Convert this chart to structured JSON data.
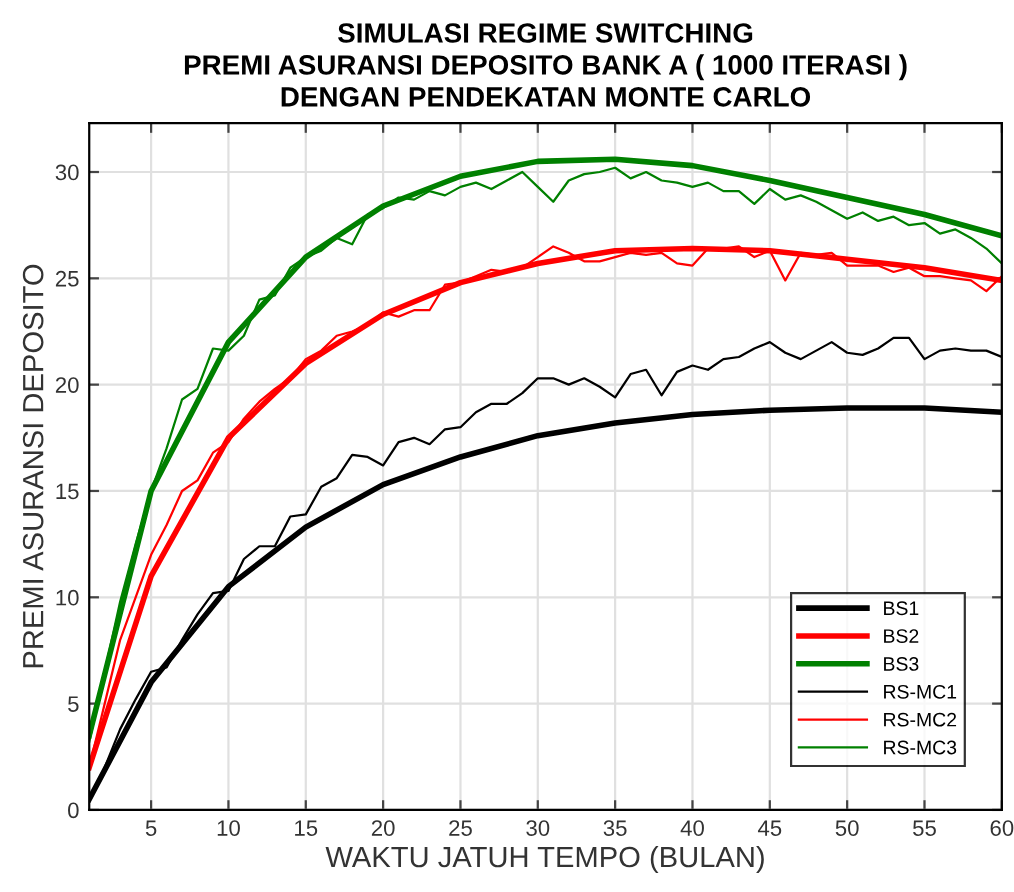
{
  "chart_data": {
    "type": "line",
    "title": "SIMULASI REGIME SWITCHING\nPREMI ASURANSI DEPOSITO BANK A ( 1000 ITERASI )\nDENGAN PENDEKATAN MONTE CARLO",
    "xlabel": "WAKTU JATUH TEMPO (BULAN)",
    "ylabel": "PREMI ASURANSI DEPOSITO",
    "xlim": [
      1,
      60
    ],
    "xticks": [
      5,
      10,
      15,
      20,
      25,
      30,
      35,
      40,
      45,
      50,
      55,
      60
    ],
    "ylim": [
      0,
      32.3
    ],
    "yticks": [
      0,
      5,
      10,
      15,
      20,
      25,
      30
    ],
    "grid": true,
    "legend": "bottom right",
    "series": [
      {
        "name": "BS1",
        "color": "#000000",
        "x": [
          1,
          5,
          10,
          15,
          20,
          25,
          30,
          35,
          40,
          45,
          50,
          55,
          60
        ],
        "values": [
          0.5,
          6,
          10.5,
          13.3,
          15.3,
          16.6,
          17.6,
          18.2,
          18.6,
          18.8,
          18.9,
          18.9,
          18.7
        ]
      },
      {
        "name": "BS2",
        "color": "#ff0000",
        "x": [
          1,
          5,
          10,
          15,
          20,
          25,
          30,
          35,
          40,
          45,
          50,
          55,
          60
        ],
        "values": [
          2,
          11,
          17.5,
          21,
          23.3,
          24.8,
          25.7,
          26.3,
          26.4,
          26.3,
          25.9,
          25.5,
          24.9
        ]
      },
      {
        "name": "BS3",
        "color": "#008000",
        "x": [
          1,
          5,
          10,
          15,
          20,
          25,
          30,
          35,
          40,
          45,
          50,
          55,
          60
        ],
        "values": [
          3.5,
          15,
          22,
          26,
          28.4,
          29.8,
          30.5,
          30.6,
          30.3,
          29.6,
          28.8,
          28,
          27
        ]
      },
      {
        "name": "RS-MC1",
        "color": "#000000",
        "x": [
          1,
          2,
          3,
          4,
          5,
          6,
          7,
          8,
          9,
          10,
          11,
          12,
          13,
          14,
          15,
          16,
          17,
          18,
          19,
          20,
          21,
          22,
          23,
          24,
          25,
          26,
          27,
          28,
          29,
          30,
          31,
          32,
          33,
          34,
          35,
          36,
          37,
          38,
          39,
          40,
          41,
          42,
          43,
          44,
          45,
          46,
          47,
          48,
          49,
          50,
          51,
          52,
          53,
          54,
          55,
          56,
          57,
          58,
          59,
          60
        ],
        "values": [
          0.5,
          2,
          3.8,
          5.2,
          6.5,
          6.7,
          8,
          9.2,
          10.2,
          10.3,
          11.8,
          12.4,
          12.4,
          13.8,
          13.9,
          15.2,
          15.6,
          16.7,
          16.6,
          16.2,
          17.3,
          17.5,
          17.2,
          17.9,
          18,
          18.7,
          19.1,
          19.1,
          19.6,
          20.3,
          20.3,
          20,
          20.3,
          19.9,
          19.4,
          20.5,
          20.7,
          19.5,
          20.6,
          20.9,
          20.7,
          21.2,
          21.3,
          21.7,
          22,
          21.5,
          21.2,
          21.6,
          22,
          21.5,
          21.4,
          21.7,
          22.2,
          22.2,
          21.2,
          21.6,
          21.7,
          21.6,
          21.6,
          21.3
        ]
      },
      {
        "name": "RS-MC2",
        "color": "#ff0000",
        "x": [
          1,
          2,
          3,
          4,
          5,
          6,
          7,
          8,
          9,
          10,
          11,
          12,
          13,
          14,
          15,
          16,
          17,
          18,
          19,
          20,
          21,
          22,
          23,
          24,
          25,
          26,
          27,
          28,
          29,
          30,
          31,
          32,
          33,
          34,
          35,
          36,
          37,
          38,
          39,
          40,
          41,
          42,
          43,
          44,
          45,
          46,
          47,
          48,
          49,
          50,
          51,
          52,
          53,
          54,
          55,
          56,
          57,
          58,
          59,
          60
        ],
        "values": [
          2,
          5,
          8,
          10,
          12,
          13.4,
          15,
          15.5,
          16.8,
          17.3,
          18.4,
          19.2,
          19.8,
          20.3,
          21.2,
          21.6,
          22.3,
          22.5,
          22.8,
          23.4,
          23.2,
          23.5,
          23.5,
          24.7,
          24.8,
          25.1,
          25.4,
          25.3,
          25.5,
          26,
          26.5,
          26.2,
          25.8,
          25.8,
          26,
          26.2,
          26.1,
          26.2,
          25.7,
          25.6,
          26.4,
          26.4,
          26.5,
          26,
          26.3,
          24.9,
          26.2,
          26.1,
          26.2,
          25.6,
          25.6,
          25.6,
          25.3,
          25.5,
          25.1,
          25.1,
          25,
          24.9,
          24.4,
          25.1
        ]
      },
      {
        "name": "RS-MC3",
        "color": "#008000",
        "x": [
          1,
          2,
          3,
          4,
          5,
          6,
          7,
          8,
          9,
          10,
          11,
          12,
          13,
          14,
          15,
          16,
          17,
          18,
          19,
          20,
          21,
          22,
          23,
          24,
          25,
          26,
          27,
          28,
          29,
          30,
          31,
          32,
          33,
          34,
          35,
          36,
          37,
          38,
          39,
          40,
          41,
          42,
          43,
          44,
          45,
          46,
          47,
          48,
          49,
          50,
          51,
          52,
          53,
          54,
          55,
          56,
          57,
          58,
          59,
          60
        ],
        "values": [
          3.2,
          6.5,
          9.8,
          12.5,
          15,
          17,
          19.3,
          19.8,
          21.7,
          21.6,
          22.3,
          24,
          24.2,
          25.5,
          26,
          26.3,
          26.9,
          26.6,
          28,
          28.3,
          28.8,
          28.7,
          29.1,
          28.9,
          29.3,
          29.5,
          29.2,
          29.6,
          30,
          29.3,
          28.6,
          29.6,
          29.9,
          30,
          30.2,
          29.7,
          30,
          29.6,
          29.5,
          29.3,
          29.5,
          29.1,
          29.1,
          28.5,
          29.2,
          28.7,
          28.9,
          28.6,
          28.2,
          27.8,
          28.1,
          27.7,
          27.9,
          27.5,
          27.6,
          27.1,
          27.3,
          26.9,
          26.4,
          25.7
        ]
      }
    ]
  }
}
